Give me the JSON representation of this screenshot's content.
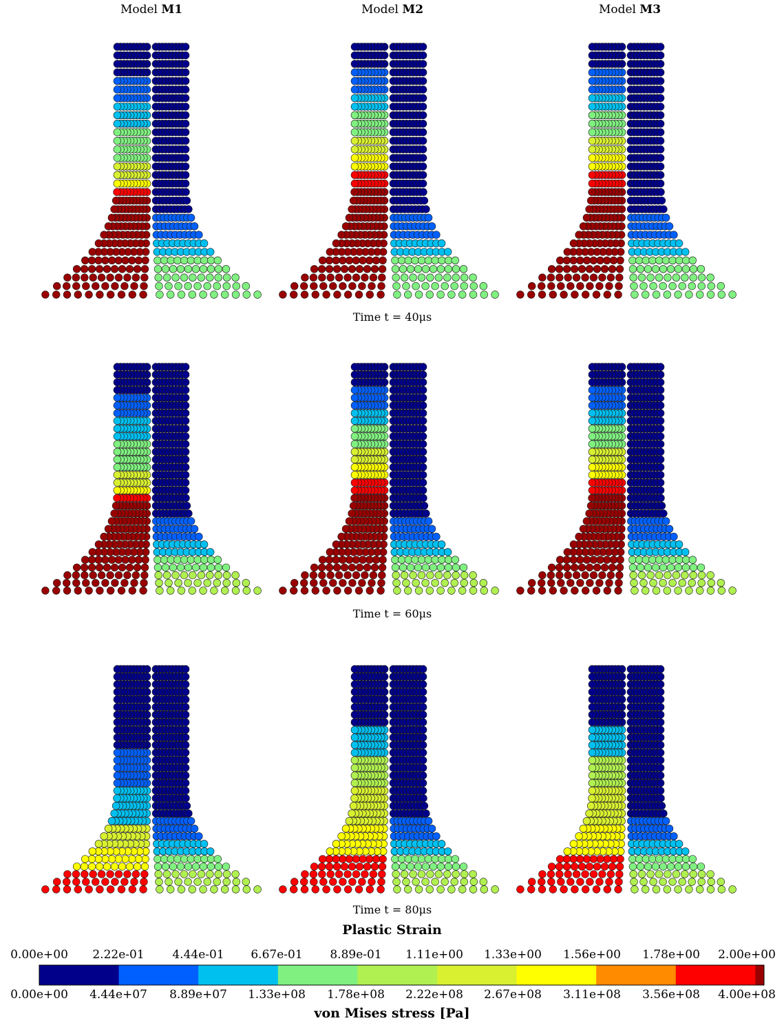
{
  "columns": [
    {
      "prefix": "Model",
      "name": "M1"
    },
    {
      "prefix": "Model",
      "name": "M2"
    },
    {
      "prefix": "Model",
      "name": "M3"
    }
  ],
  "time_labels": [
    "Time t = 40μs",
    "Time t = 60μs",
    "Time t = 80μs"
  ],
  "colorbar": {
    "top_title": "Plastic Strain",
    "top_ticks": [
      "0.00e+00",
      "2.22e-01",
      "4.44e-01",
      "6.67e-01",
      "8.89e-01",
      "1.11e+00",
      "1.33e+00",
      "1.56e+00",
      "1.78e+00",
      "2.00e+00"
    ],
    "bottom_ticks": [
      "0.00e+00",
      "4.44e+07",
      "8.89e+07",
      "1.33e+08",
      "1.78e+08",
      "2.22e+08",
      "2.67e+08",
      "3.11e+08",
      "3.56e+08",
      "4.00e+08"
    ],
    "bottom_title": "von Mises stress [Pa]",
    "colors": [
      "#00008b",
      "#0060ff",
      "#00c0f0",
      "#80f080",
      "#b0f050",
      "#d8f030",
      "#ffff00",
      "#ff8c00",
      "#ff0000",
      "#990000"
    ]
  }
}
